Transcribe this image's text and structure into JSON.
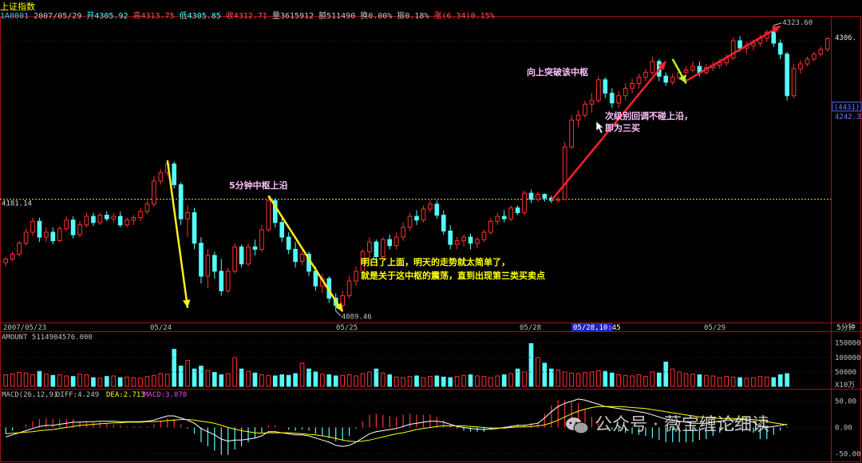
{
  "header": {
    "title": "上证指数",
    "info": [
      {
        "text": "1A0001",
        "color": "#40c0ff"
      },
      {
        "text": "2007/05/29",
        "color": "#c0c0c0"
      },
      {
        "text": "开4305.92",
        "color": "#40ffff"
      },
      {
        "text": "高4313.75",
        "color": "#ff5050"
      },
      {
        "text": "低4305.85",
        "color": "#40ffff"
      },
      {
        "text": "收4312.71",
        "color": "#ff5050"
      },
      {
        "text": "量3615912",
        "color": "#c0c0c0"
      },
      {
        "text": "额511490",
        "color": "#c0c0c0"
      },
      {
        "text": "换0.00%",
        "color": "#c0c0c0"
      },
      {
        "text": "振0.18%",
        "color": "#c0c0c0"
      },
      {
        "text": "涨(6.34)0.15%",
        "color": "#ff5050"
      }
    ]
  },
  "annotations": {
    "zhongshu_top": "5分钟中枢上沿",
    "breakout": "向上突破该中枢",
    "third_buy_line1": "次级别回调不碰上沿，",
    "third_buy_line2": "即为三买",
    "summary_line1": "明白了上面，明天的走势就太简单了，",
    "summary_line2": "就是关于这中枢的震荡，直到出现第三类买卖点"
  },
  "watermark": "公众号 · 薇宝缠论细读",
  "chart_data": {
    "type": "candlestick",
    "period_label": "5分钟",
    "price_labels": {
      "ref_line": "4181.14",
      "high": "4323.60",
      "low": "4089.46",
      "right_top": "4306.",
      "cursor_box": "(4431)",
      "cursor_price": "4242.33"
    },
    "x_dates": [
      "2007/05/23",
      "05/24",
      "05/25",
      "05/28",
      "05/28,10:45",
      "05/29"
    ],
    "ref_level": 4181.14,
    "candles": [
      [
        4129.0,
        4134.0,
        4126.0,
        4132.0
      ],
      [
        4132.0,
        4138.0,
        4130.0,
        4136.0
      ],
      [
        4136.0,
        4147.0,
        4134.0,
        4145.0
      ],
      [
        4145.0,
        4157.0,
        4143.0,
        4154.0
      ],
      [
        4154.0,
        4166.0,
        4151.0,
        4163.0
      ],
      [
        4163.0,
        4166.0,
        4146.0,
        4150.0
      ],
      [
        4150.0,
        4158.0,
        4146.0,
        4154.0
      ],
      [
        4154.0,
        4158.0,
        4144.0,
        4147.0
      ],
      [
        4147.0,
        4159.0,
        4146.0,
        4157.0
      ],
      [
        4157.0,
        4167.0,
        4155.0,
        4164.0
      ],
      [
        4164.0,
        4167.0,
        4149.0,
        4152.0
      ],
      [
        4152.0,
        4163.0,
        4150.0,
        4160.0
      ],
      [
        4160.0,
        4170.0,
        4158.0,
        4167.0
      ],
      [
        4167.0,
        4170.0,
        4159.0,
        4162.0
      ],
      [
        4162.0,
        4170.0,
        4160.0,
        4168.0
      ],
      [
        4168.0,
        4171.0,
        4163.0,
        4165.0
      ],
      [
        4165.0,
        4170.0,
        4162.0,
        4167.0
      ],
      [
        4167.0,
        4171.0,
        4158.0,
        4160.0
      ],
      [
        4160.0,
        4166.0,
        4158.0,
        4164.0
      ],
      [
        4164.0,
        4168.0,
        4160.0,
        4166.0
      ],
      [
        4166.0,
        4174.0,
        4163.0,
        4171.0
      ],
      [
        4171.0,
        4180.0,
        4169.0,
        4177.0
      ],
      [
        4177.0,
        4200.0,
        4175.0,
        4196.0
      ],
      [
        4196.0,
        4206.0,
        4193.0,
        4203.0
      ],
      [
        4203.0,
        4213.0,
        4200.0,
        4210.0
      ],
      [
        4210.0,
        4212.0,
        4190.0,
        4193.0
      ],
      [
        4193.0,
        4195.0,
        4160.0,
        4165.0
      ],
      [
        4165.0,
        4176.0,
        4150.0,
        4170.0
      ],
      [
        4170.0,
        4174.0,
        4140.0,
        4145.0
      ],
      [
        4145.0,
        4150.0,
        4112.0,
        4118.0
      ],
      [
        4118.0,
        4140.0,
        4108.0,
        4135.0
      ],
      [
        4135.0,
        4138.0,
        4116.0,
        4122.0
      ],
      [
        4122.0,
        4132.0,
        4102.0,
        4106.0
      ],
      [
        4106.0,
        4125.0,
        4104.0,
        4122.0
      ],
      [
        4122.0,
        4145.0,
        4120.0,
        4142.0
      ],
      [
        4142.0,
        4144.0,
        4125.0,
        4128.0
      ],
      [
        4128.0,
        4145.0,
        4126.0,
        4142.0
      ],
      [
        4142.0,
        4148.0,
        4135.0,
        4140.0
      ],
      [
        4140.0,
        4160.0,
        4138.0,
        4156.0
      ],
      [
        4156.0,
        4184.0,
        4154.0,
        4180.0
      ],
      [
        4180.0,
        4182.0,
        4158.0,
        4162.0
      ],
      [
        4162.0,
        4166.0,
        4146.0,
        4150.0
      ],
      [
        4150.0,
        4154.0,
        4136.0,
        4140.0
      ],
      [
        4140.0,
        4146.0,
        4125.0,
        4130.0
      ],
      [
        4130.0,
        4140.0,
        4127.0,
        4136.0
      ],
      [
        4136.0,
        4138.0,
        4118.0,
        4122.0
      ],
      [
        4122.0,
        4126.0,
        4106.0,
        4110.0
      ],
      [
        4110.0,
        4120.0,
        4104.0,
        4116.0
      ],
      [
        4116.0,
        4118.0,
        4096.0,
        4100.0
      ],
      [
        4100.0,
        4104.0,
        4089.5,
        4094.0
      ],
      [
        4094.0,
        4106.0,
        4090.0,
        4102.0
      ],
      [
        4102.0,
        4118.0,
        4100.0,
        4114.0
      ],
      [
        4114.0,
        4126.0,
        4110.0,
        4122.0
      ],
      [
        4122.0,
        4140.0,
        4120.0,
        4138.0
      ],
      [
        4138.0,
        4150.0,
        4133.0,
        4146.0
      ],
      [
        4146.0,
        4148.0,
        4130.0,
        4134.0
      ],
      [
        4134.0,
        4150.0,
        4132.0,
        4148.0
      ],
      [
        4148.0,
        4152.0,
        4140.0,
        4143.0
      ],
      [
        4143.0,
        4154.0,
        4140.0,
        4150.0
      ],
      [
        4150.0,
        4162.0,
        4147.0,
        4158.0
      ],
      [
        4158.0,
        4170.0,
        4155.0,
        4167.0
      ],
      [
        4167.0,
        4172.0,
        4160.0,
        4164.0
      ],
      [
        4164.0,
        4176.0,
        4162.0,
        4173.0
      ],
      [
        4173.0,
        4180.0,
        4170.0,
        4177.0
      ],
      [
        4177.0,
        4180.0,
        4165.0,
        4168.0
      ],
      [
        4168.0,
        4172.0,
        4152.0,
        4155.0
      ],
      [
        4155.0,
        4160.0,
        4140.0,
        4144.0
      ],
      [
        4144.0,
        4150.0,
        4140.0,
        4147.0
      ],
      [
        4147.0,
        4152.0,
        4142.0,
        4150.0
      ],
      [
        4150.0,
        4153.0,
        4140.0,
        4145.0
      ],
      [
        4145.0,
        4150.0,
        4141.0,
        4148.0
      ],
      [
        4148.0,
        4156.0,
        4146.0,
        4154.0
      ],
      [
        4154.0,
        4166.0,
        4152.0,
        4163.0
      ],
      [
        4163.0,
        4170.0,
        4160.0,
        4167.0
      ],
      [
        4167.0,
        4172.0,
        4162.0,
        4165.0
      ],
      [
        4165.0,
        4176.0,
        4163.0,
        4174.0
      ],
      [
        4174.0,
        4176.0,
        4168.0,
        4170.0
      ],
      [
        4170.0,
        4188.0,
        4168.0,
        4186.0
      ],
      [
        4186.0,
        4189.0,
        4178.0,
        4181.0
      ],
      [
        4181.0,
        4187.0,
        4179.0,
        4185.0
      ],
      [
        4185.0,
        4186.0,
        4179.0,
        4182.0
      ],
      [
        4182.0,
        4184.0,
        4178.0,
        4180.0
      ],
      [
        4180.0,
        4183.0,
        4178.0,
        4181.0
      ],
      [
        4181.0,
        4228.0,
        4180.0,
        4224.0
      ],
      [
        4224.0,
        4250.0,
        4222.0,
        4246.0
      ],
      [
        4246.0,
        4254.0,
        4240.0,
        4250.0
      ],
      [
        4250.0,
        4262.0,
        4248.0,
        4259.0
      ],
      [
        4259.0,
        4268.0,
        4252.0,
        4262.0
      ],
      [
        4262.0,
        4282.0,
        4260.0,
        4279.0
      ],
      [
        4279.0,
        4281.0,
        4264.0,
        4268.0
      ],
      [
        4268.0,
        4272.0,
        4256.0,
        4260.0
      ],
      [
        4260.0,
        4270.0,
        4256.0,
        4266.0
      ],
      [
        4266.0,
        4276.0,
        4262.0,
        4272.0
      ],
      [
        4272.0,
        4280.0,
        4268.0,
        4276.0
      ],
      [
        4276.0,
        4284.0,
        4272.0,
        4281.0
      ],
      [
        4281.0,
        4288.0,
        4278.0,
        4285.0
      ],
      [
        4285.0,
        4298.0,
        4283.0,
        4294.0
      ],
      [
        4294.0,
        4296.0,
        4278.0,
        4282.0
      ],
      [
        4282.0,
        4285.0,
        4274.0,
        4277.0
      ],
      [
        4277.0,
        4284.0,
        4275.0,
        4281.0
      ],
      [
        4281.0,
        4288.0,
        4279.0,
        4285.0
      ],
      [
        4285.0,
        4290.0,
        4281.0,
        4287.0
      ],
      [
        4287.0,
        4294.0,
        4285.0,
        4290.0
      ],
      [
        4290.0,
        4294.0,
        4282.0,
        4285.0
      ],
      [
        4285.0,
        4292.0,
        4283.0,
        4289.0
      ],
      [
        4289.0,
        4294.0,
        4286.0,
        4291.0
      ],
      [
        4291.0,
        4296.0,
        4288.0,
        4293.0
      ],
      [
        4293.0,
        4300.0,
        4290.0,
        4297.0
      ],
      [
        4297.0,
        4314.0,
        4295.0,
        4311.0
      ],
      [
        4311.0,
        4315.0,
        4302.0,
        4305.0
      ],
      [
        4305.0,
        4310.0,
        4300.0,
        4307.0
      ],
      [
        4307.0,
        4312.0,
        4303.0,
        4309.0
      ],
      [
        4309.0,
        4316.0,
        4306.0,
        4313.0
      ],
      [
        4313.0,
        4320.0,
        4310.0,
        4318.0
      ],
      [
        4318.0,
        4323.6,
        4306.0,
        4309.0
      ],
      [
        4309.0,
        4312.0,
        4296.0,
        4300.0
      ],
      [
        4300.0,
        4302.0,
        4262.0,
        4266.0
      ],
      [
        4266.0,
        4292.0,
        4264.0,
        4288.0
      ],
      [
        4288.0,
        4295.0,
        4284.0,
        4292.0
      ],
      [
        4292.0,
        4298.0,
        4290.0,
        4296.0
      ],
      [
        4296.0,
        4302.0,
        4294.0,
        4300.0
      ],
      [
        4300.0,
        4306.0,
        4298.0,
        4304.0
      ],
      [
        4304.0,
        4313.8,
        4302.0,
        4312.7
      ]
    ],
    "amount": {
      "title": "AMOUNT 5114904576.000",
      "ticks": [
        "150000",
        "100000",
        "50000"
      ],
      "unit": "X10万",
      "max": 160000,
      "values": [
        40000,
        43000,
        48000,
        46000,
        40000,
        52000,
        42000,
        38000,
        40000,
        36000,
        34000,
        42000,
        40000,
        30000,
        28000,
        34000,
        36000,
        30000,
        32000,
        30000,
        28000,
        34000,
        38000,
        44000,
        42000,
        128000,
        70000,
        90000,
        60000,
        70000,
        55000,
        48000,
        40000,
        44000,
        100000,
        60000,
        52000,
        46000,
        40000,
        38000,
        36000,
        40000,
        38000,
        44000,
        80000,
        60000,
        50000,
        42000,
        40000,
        36000,
        38000,
        40000,
        36000,
        44000,
        50000,
        60000,
        46000,
        40000,
        32000,
        30000,
        34000,
        36000,
        30000,
        34000,
        36000,
        32000,
        30000,
        34000,
        38000,
        40000,
        36000,
        34000,
        30000,
        36000,
        40000,
        44000,
        60000,
        50000,
        148000,
        100000,
        80000,
        60000,
        56000,
        50000,
        46000,
        44000,
        48000,
        50000,
        54000,
        52000,
        46000,
        40000,
        38000,
        36000,
        40000,
        34000,
        50000,
        46000,
        84000,
        60000,
        50000,
        44000,
        42000,
        40000,
        38000,
        36000,
        30000,
        34000,
        32000,
        30000,
        28000,
        30000,
        34000,
        32000,
        30000,
        40000,
        44000
      ]
    },
    "macd": {
      "params": "MACD(26,12,9)",
      "diff_label": "DIFF:4.249",
      "dea_label": "DEA:2.713",
      "macd_label": "MACD:3.070",
      "ticks": [
        "50.00",
        "0.00",
        "-50.00"
      ],
      "diff": [
        -18,
        -14,
        -10,
        -6,
        -2,
        2,
        4,
        4,
        6,
        8,
        10,
        10,
        11,
        11,
        12,
        12,
        12,
        11,
        11,
        11,
        11,
        12,
        14,
        18,
        22,
        22,
        18,
        14,
        8,
        -2,
        -8,
        -14,
        -22,
        -26,
        -24,
        -24,
        -22,
        -20,
        -16,
        -8,
        -8,
        -10,
        -12,
        -14,
        -14,
        -16,
        -20,
        -24,
        -28,
        -34,
        -36,
        -34,
        -28,
        -20,
        -12,
        -8,
        -6,
        -4,
        -2,
        2,
        6,
        8,
        10,
        12,
        12,
        10,
        6,
        2,
        0,
        -2,
        -3,
        -4,
        -3,
        -2,
        0,
        2,
        4,
        4,
        6,
        8,
        18,
        30,
        40,
        46,
        50,
        54,
        52,
        48,
        44,
        40,
        38,
        36,
        34,
        32,
        30,
        28,
        24,
        20,
        16,
        14,
        12,
        10,
        8,
        8,
        8,
        10,
        12,
        14,
        14,
        16,
        14,
        10,
        2,
        0,
        2,
        4,
        6
      ],
      "dea": [
        -12,
        -11,
        -10,
        -9,
        -8,
        -6,
        -5,
        -4,
        -2,
        0,
        2,
        4,
        5,
        6,
        7,
        8,
        9,
        9,
        10,
        10,
        10,
        11,
        11,
        12,
        13,
        14,
        15,
        15,
        14,
        12,
        10,
        8,
        4,
        0,
        -3,
        -6,
        -8,
        -10,
        -11,
        -10,
        -10,
        -10,
        -10,
        -11,
        -12,
        -13,
        -14,
        -16,
        -18,
        -21,
        -24,
        -26,
        -27,
        -26,
        -24,
        -21,
        -18,
        -15,
        -12,
        -10,
        -7,
        -4,
        -2,
        0,
        2,
        3,
        3,
        3,
        3,
        2,
        1,
        0,
        -1,
        -1,
        -1,
        0,
        1,
        1,
        2,
        3,
        5,
        9,
        14,
        20,
        26,
        31,
        35,
        38,
        40,
        40,
        40,
        40,
        39,
        38,
        37,
        36,
        34,
        32,
        30,
        28,
        26,
        24,
        22,
        20,
        19,
        18,
        17,
        17,
        17,
        17,
        16,
        15,
        13,
        11,
        9,
        7,
        5
      ]
    }
  }
}
